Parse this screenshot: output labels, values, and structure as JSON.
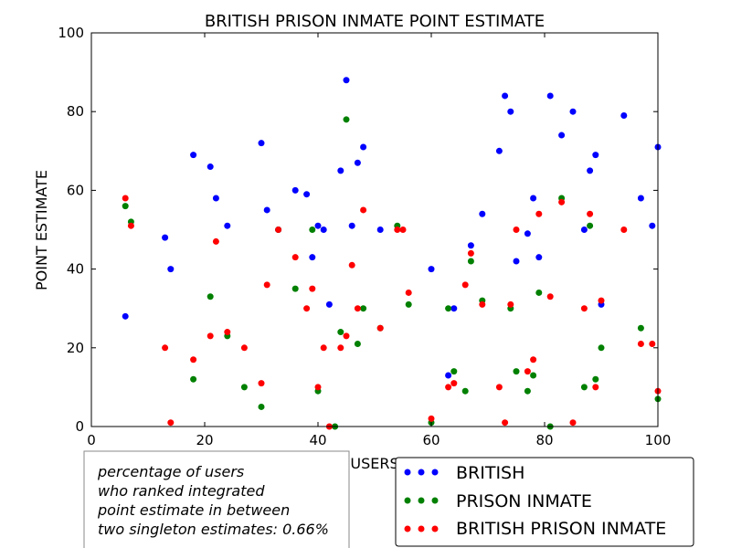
{
  "chart_data": {
    "type": "scatter",
    "title": "BRITISH PRISON INMATE POINT ESTIMATE",
    "xlabel": "USERS",
    "ylabel": "POINT ESTIMATE",
    "xlim": [
      0,
      100
    ],
    "ylim": [
      0,
      100
    ],
    "xticks": [
      "0",
      "20",
      "40",
      "60",
      "80",
      "100"
    ],
    "yticks": [
      "0",
      "20",
      "40",
      "60",
      "80",
      "100"
    ],
    "grid": false,
    "legend_placement": "bottom-right",
    "series": [
      {
        "name": "BRITISH",
        "color": "#0000ff",
        "points": [
          [
            6,
            28
          ],
          [
            13,
            48
          ],
          [
            14,
            40
          ],
          [
            18,
            69
          ],
          [
            21,
            66
          ],
          [
            22,
            58
          ],
          [
            24,
            51
          ],
          [
            30,
            72
          ],
          [
            31,
            55
          ],
          [
            33,
            50
          ],
          [
            36,
            60
          ],
          [
            38,
            59
          ],
          [
            39,
            43
          ],
          [
            40,
            51
          ],
          [
            41,
            50
          ],
          [
            42,
            31
          ],
          [
            44,
            65
          ],
          [
            45,
            88
          ],
          [
            46,
            51
          ],
          [
            47,
            67
          ],
          [
            48,
            71
          ],
          [
            51,
            50
          ],
          [
            60,
            40
          ],
          [
            63,
            13
          ],
          [
            64,
            30
          ],
          [
            67,
            46
          ],
          [
            69,
            54
          ],
          [
            72,
            70
          ],
          [
            73,
            84
          ],
          [
            74,
            80
          ],
          [
            75,
            42
          ],
          [
            77,
            49
          ],
          [
            78,
            58
          ],
          [
            79,
            43
          ],
          [
            81,
            84
          ],
          [
            83,
            74
          ],
          [
            85,
            80
          ],
          [
            87,
            50
          ],
          [
            88,
            65
          ],
          [
            89,
            69
          ],
          [
            90,
            31
          ],
          [
            94,
            79
          ],
          [
            97,
            58
          ],
          [
            99,
            51
          ],
          [
            100,
            71
          ]
        ]
      },
      {
        "name": "PRISON INMATE",
        "color": "#008000",
        "points": [
          [
            6,
            56
          ],
          [
            7,
            52
          ],
          [
            18,
            12
          ],
          [
            21,
            33
          ],
          [
            24,
            23
          ],
          [
            27,
            10
          ],
          [
            30,
            5
          ],
          [
            33,
            50
          ],
          [
            36,
            35
          ],
          [
            39,
            50
          ],
          [
            40,
            9
          ],
          [
            43,
            0
          ],
          [
            44,
            24
          ],
          [
            45,
            78
          ],
          [
            47,
            21
          ],
          [
            48,
            30
          ],
          [
            51,
            25
          ],
          [
            54,
            51
          ],
          [
            56,
            31
          ],
          [
            60,
            1
          ],
          [
            63,
            30
          ],
          [
            64,
            14
          ],
          [
            66,
            9
          ],
          [
            67,
            42
          ],
          [
            69,
            32
          ],
          [
            74,
            30
          ],
          [
            75,
            14
          ],
          [
            77,
            9
          ],
          [
            78,
            13
          ],
          [
            79,
            34
          ],
          [
            81,
            0
          ],
          [
            83,
            58
          ],
          [
            87,
            10
          ],
          [
            88,
            51
          ],
          [
            89,
            12
          ],
          [
            90,
            20
          ],
          [
            97,
            25
          ],
          [
            100,
            7
          ]
        ]
      },
      {
        "name": "BRITISH PRISON INMATE",
        "color": "#ff0000",
        "points": [
          [
            6,
            58
          ],
          [
            7,
            51
          ],
          [
            13,
            20
          ],
          [
            14,
            1
          ],
          [
            18,
            17
          ],
          [
            21,
            23
          ],
          [
            22,
            47
          ],
          [
            24,
            24
          ],
          [
            27,
            20
          ],
          [
            30,
            11
          ],
          [
            31,
            36
          ],
          [
            33,
            50
          ],
          [
            36,
            43
          ],
          [
            38,
            30
          ],
          [
            39,
            35
          ],
          [
            40,
            10
          ],
          [
            41,
            20
          ],
          [
            42,
            0
          ],
          [
            44,
            20
          ],
          [
            45,
            23
          ],
          [
            46,
            41
          ],
          [
            47,
            30
          ],
          [
            48,
            55
          ],
          [
            51,
            25
          ],
          [
            54,
            50
          ],
          [
            55,
            50
          ],
          [
            56,
            34
          ],
          [
            60,
            2
          ],
          [
            63,
            10
          ],
          [
            64,
            11
          ],
          [
            66,
            36
          ],
          [
            67,
            44
          ],
          [
            69,
            31
          ],
          [
            72,
            10
          ],
          [
            73,
            1
          ],
          [
            74,
            31
          ],
          [
            75,
            50
          ],
          [
            77,
            14
          ],
          [
            78,
            17
          ],
          [
            79,
            54
          ],
          [
            81,
            33
          ],
          [
            83,
            57
          ],
          [
            85,
            1
          ],
          [
            87,
            30
          ],
          [
            88,
            54
          ],
          [
            89,
            10
          ],
          [
            90,
            32
          ],
          [
            94,
            50
          ],
          [
            97,
            21
          ],
          [
            99,
            21
          ],
          [
            100,
            9
          ]
        ]
      }
    ]
  },
  "annotation": {
    "lines": [
      "percentage of users",
      "who ranked integrated",
      "point estimate in between",
      "two singleton estimates: 0.66%"
    ]
  }
}
